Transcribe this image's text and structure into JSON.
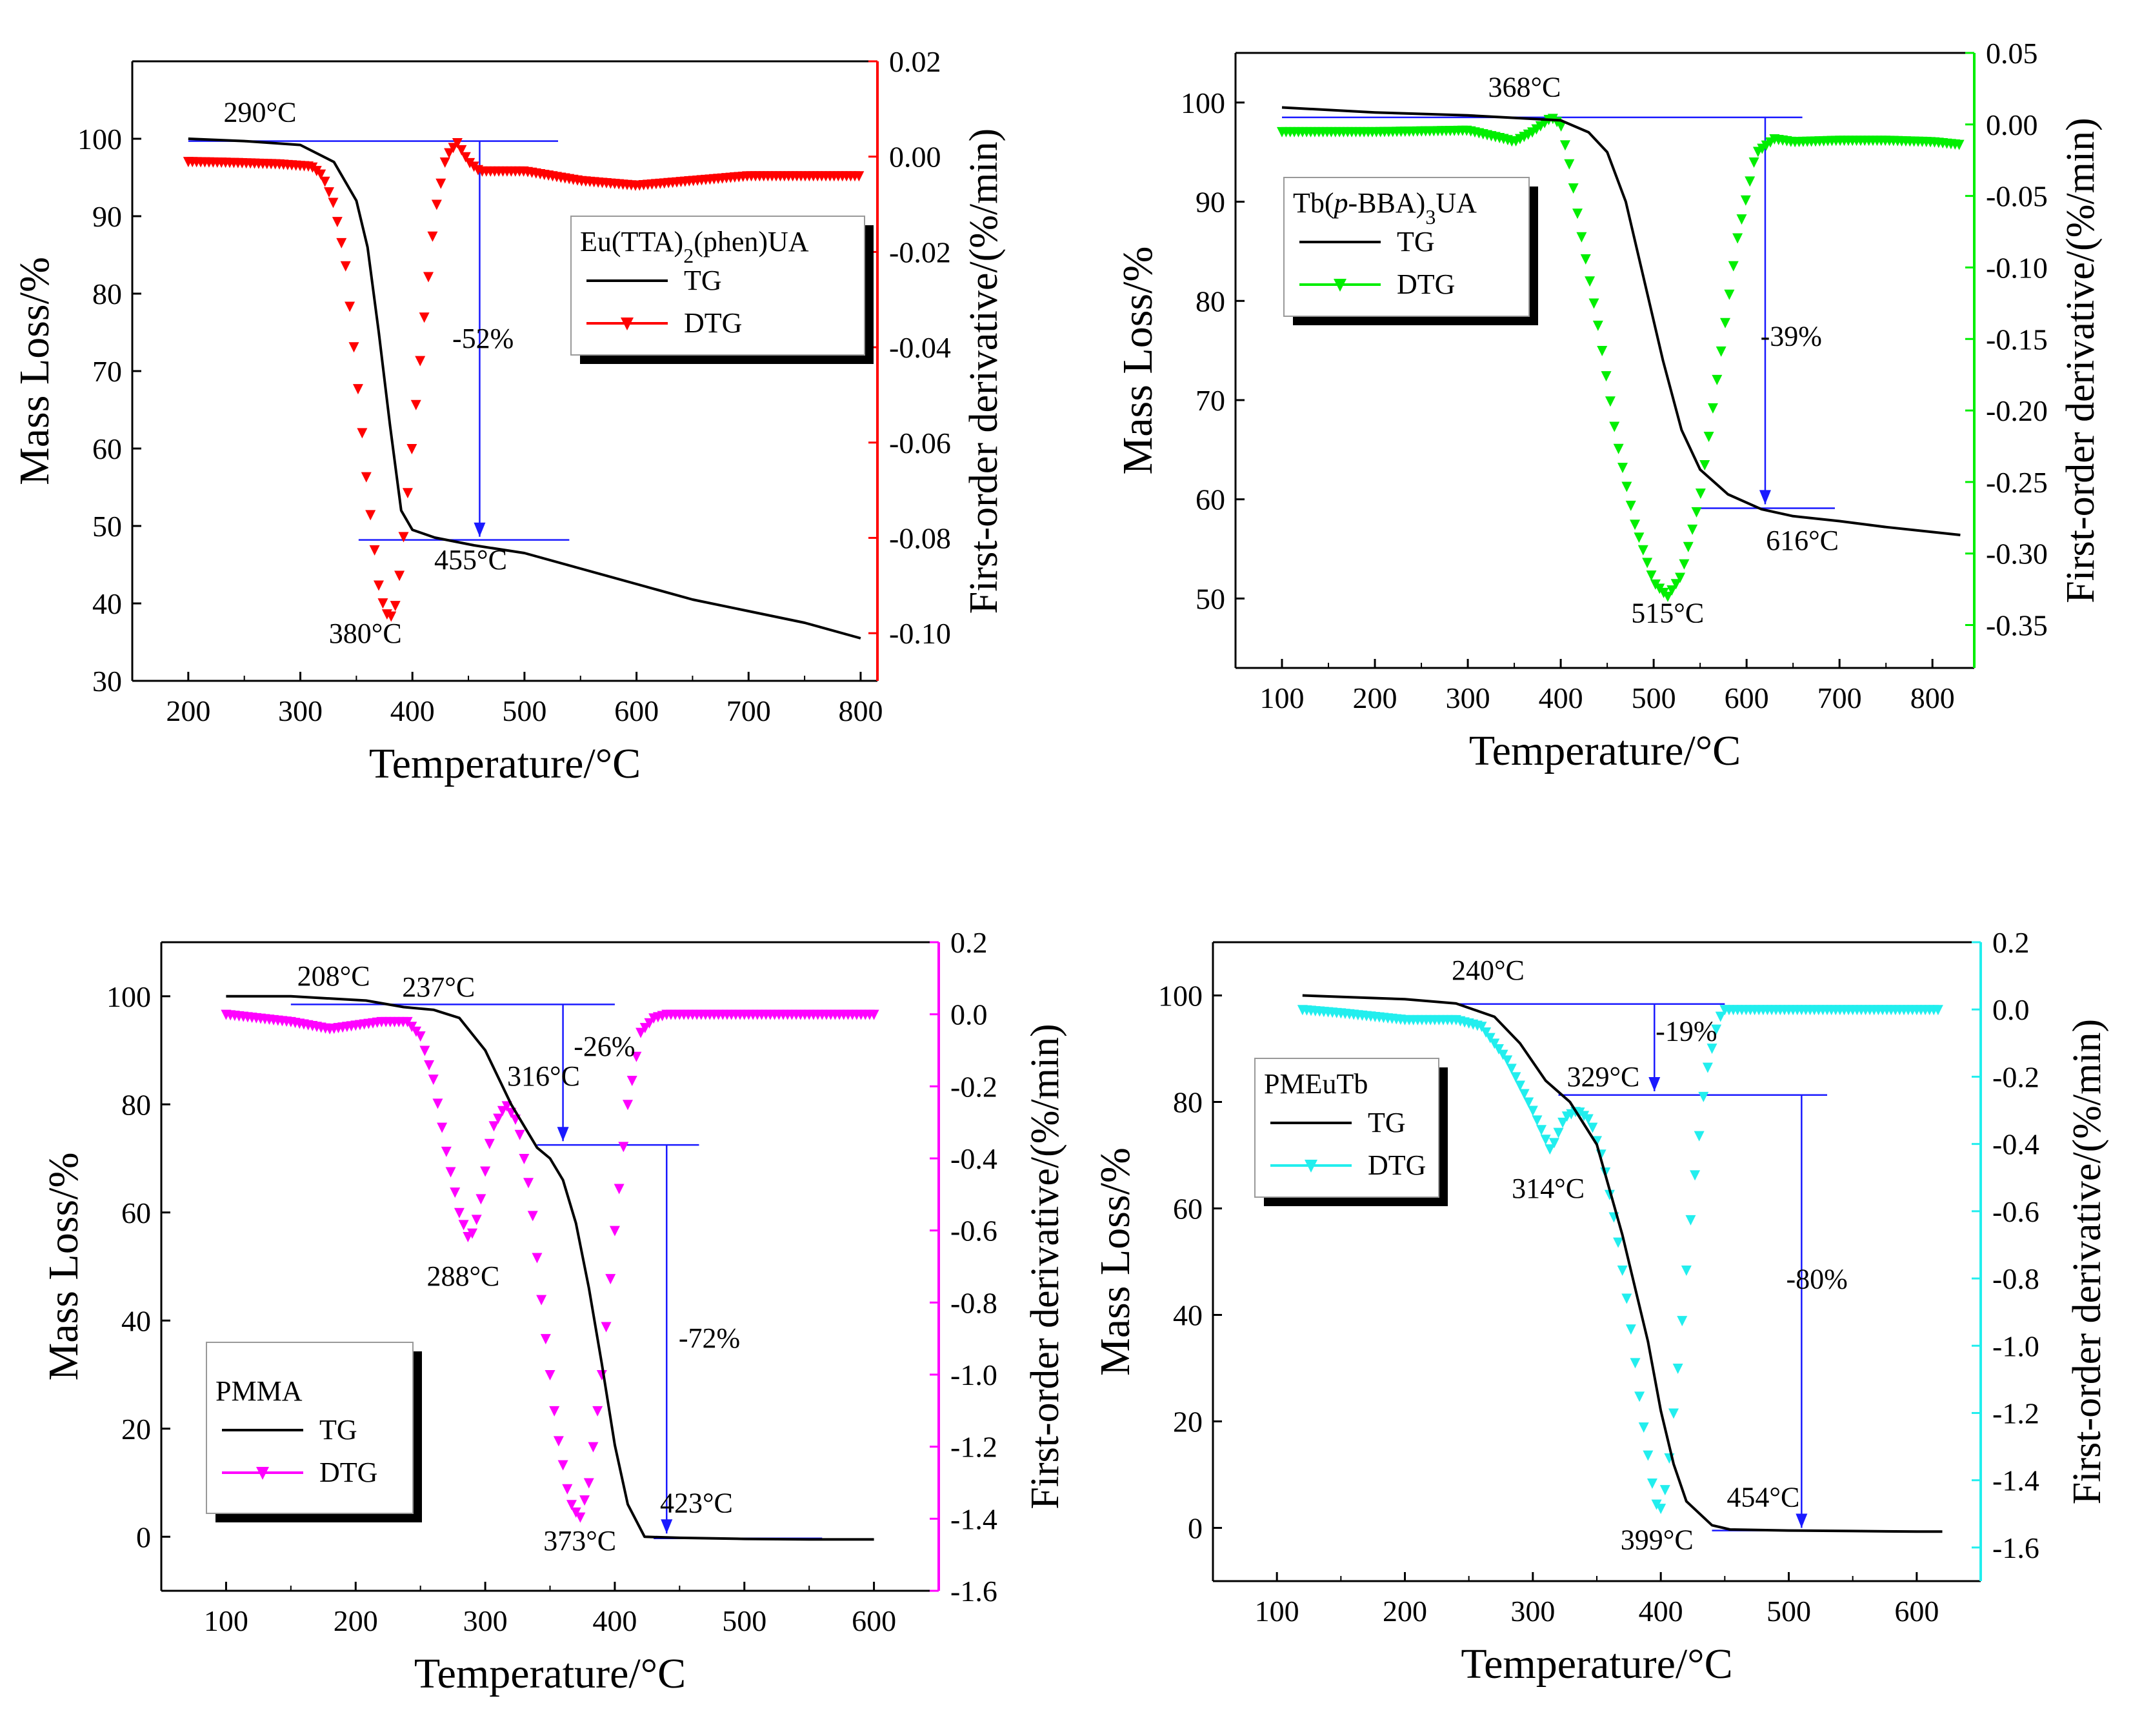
{
  "chart_data": [
    {
      "type": "line",
      "xlabel": "Temperature/°C",
      "ylabel_left": "Mass Loss/%",
      "ylabel_right": "First-order derivative/(%/min)",
      "xlim": [
        150,
        815
      ],
      "ylim_left": [
        30,
        110
      ],
      "ylim_right": [
        -0.11,
        0.02
      ],
      "xticks": [
        200,
        300,
        400,
        500,
        600,
        700,
        800
      ],
      "yticks_left": [
        30,
        40,
        50,
        60,
        70,
        80,
        90,
        100
      ],
      "yticks_right": [
        -0.1,
        -0.08,
        -0.06,
        -0.04,
        -0.02,
        0.0,
        0.02
      ],
      "ytick_labels_right": [
        "-0.10",
        "-0.08",
        "-0.06",
        "-0.04",
        "-0.02",
        "0.00",
        "0.02"
      ],
      "dtg_color": "#ff0000",
      "legend": {
        "title": "Eu(TTA)<sub>2</sub>(phen)UA",
        "tg": "TG",
        "dtg": "DTG"
      },
      "tg": {
        "x": [
          200,
          250,
          300,
          330,
          350,
          360,
          370,
          380,
          390,
          400,
          420,
          455,
          500,
          550,
          600,
          650,
          700,
          750,
          800
        ],
        "y": [
          100,
          99.7,
          99.2,
          97,
          92,
          86,
          75,
          63,
          52,
          49.5,
          48.5,
          47.5,
          46.5,
          44.5,
          42.5,
          40.5,
          39,
          37.5,
          35.5
        ]
      },
      "dtg": {
        "x": [
          200,
          240,
          280,
          310,
          320,
          330,
          340,
          350,
          360,
          370,
          375,
          380,
          385,
          390,
          400,
          410,
          420,
          430,
          440,
          450,
          460,
          480,
          500,
          550,
          600,
          650,
          700,
          750,
          800
        ],
        "y": [
          -0.001,
          -0.0012,
          -0.0015,
          -0.002,
          -0.004,
          -0.01,
          -0.022,
          -0.045,
          -0.07,
          -0.09,
          -0.095,
          -0.097,
          -0.094,
          -0.085,
          -0.06,
          -0.035,
          -0.012,
          0.0,
          0.003,
          -0.001,
          -0.003,
          -0.003,
          -0.003,
          -0.005,
          -0.006,
          -0.005,
          -0.004,
          -0.004,
          -0.004
        ]
      },
      "guides": [
        {
          "x1": 200,
          "y1": 99.7,
          "x2": 530,
          "y2": 99.7
        },
        {
          "x1": 352,
          "y1": 48.2,
          "x2": 540,
          "y2": 48.2
        },
        {
          "x1": 460,
          "y1": 99.7,
          "x2": 460,
          "y2": 48.6,
          "arrow": true
        }
      ],
      "annotations": [
        {
          "text": "290°C",
          "x": 264,
          "y": 102.2
        },
        {
          "text": "455°C",
          "x": 452,
          "y": 44.4
        },
        {
          "text": "380°C",
          "x": 358,
          "y": 34.9
        },
        {
          "text": "-52%",
          "x": 463,
          "y": 73
        }
      ]
    },
    {
      "type": "line",
      "xlabel": "Temperature/°C",
      "ylabel_left": "Mass Loss/%",
      "ylabel_right": "First-order derivative/(%/min)",
      "xlim": [
        50,
        845
      ],
      "ylim_left": [
        43,
        105
      ],
      "ylim_right": [
        -0.38,
        0.05
      ],
      "xticks": [
        100,
        200,
        300,
        400,
        500,
        600,
        700,
        800
      ],
      "yticks_left": [
        50,
        60,
        70,
        80,
        90,
        100
      ],
      "yticks_right": [
        -0.35,
        -0.3,
        -0.25,
        -0.2,
        -0.15,
        -0.1,
        -0.05,
        0.0,
        0.05
      ],
      "ytick_labels_right": [
        "-0.35",
        "-0.30",
        "-0.25",
        "-0.20",
        "-0.15",
        "-0.10",
        "-0.05",
        "0.00",
        "0.05"
      ],
      "dtg_color": "#00ee00",
      "legend": {
        "title": "Tb(<i>p</i>-BBA)<sub>3</sub>UA",
        "tg": "TG",
        "dtg": "DTG"
      },
      "tg": {
        "x": [
          100,
          200,
          300,
          400,
          430,
          450,
          470,
          490,
          510,
          530,
          550,
          580,
          616,
          650,
          700,
          750,
          800,
          830
        ],
        "y": [
          99.5,
          99,
          98.7,
          98.2,
          97,
          95,
          90,
          82,
          74,
          67,
          63,
          60.5,
          59,
          58.3,
          57.8,
          57.2,
          56.7,
          56.4
        ]
      },
      "dtg": {
        "x": [
          100,
          200,
          300,
          340,
          350,
          370,
          380,
          390,
          400,
          410,
          420,
          440,
          460,
          480,
          500,
          515,
          530,
          550,
          570,
          590,
          610,
          630,
          650,
          700,
          750,
          800,
          830
        ],
        "y": [
          -0.005,
          -0.005,
          -0.004,
          -0.01,
          -0.012,
          -0.005,
          0.0,
          0.005,
          0.0,
          -0.03,
          -0.07,
          -0.14,
          -0.22,
          -0.28,
          -0.32,
          -0.33,
          -0.315,
          -0.26,
          -0.17,
          -0.08,
          -0.02,
          -0.01,
          -0.012,
          -0.011,
          -0.011,
          -0.012,
          -0.014
        ]
      },
      "guides": [
        {
          "x1": 100,
          "y1": 98.5,
          "x2": 660,
          "y2": 98.5
        },
        {
          "x1": 550,
          "y1": 59.1,
          "x2": 695,
          "y2": 59.1
        },
        {
          "x1": 620,
          "y1": 98.5,
          "x2": 620,
          "y2": 59.5,
          "arrow": true
        }
      ],
      "annotations": [
        {
          "text": "368°C",
          "x": 361,
          "y": 100.6
        },
        {
          "text": "616°C",
          "x": 660,
          "y": 54.9
        },
        {
          "text": "515°C",
          "x": 515,
          "y": 47.6
        },
        {
          "text": "-39%",
          "x": 648,
          "y": 75.5
        }
      ]
    },
    {
      "type": "line",
      "xlabel": "Temperature/°C",
      "ylabel_left": "Mass Loss/%",
      "ylabel_right": "First-order derivative/(%/min)",
      "xlim": [
        50,
        650
      ],
      "ylim_left": [
        -10,
        110
      ],
      "ylim_right": [
        -1.6,
        0.2
      ],
      "xticks": [
        100,
        200,
        300,
        400,
        500,
        600
      ],
      "yticks_left": [
        0,
        20,
        40,
        60,
        80,
        100
      ],
      "yticks_right": [
        -1.6,
        -1.4,
        -1.2,
        -1.0,
        -0.8,
        -0.6,
        -0.4,
        -0.2,
        0.0,
        0.2
      ],
      "ytick_labels_right": [
        "-1.6",
        "-1.4",
        "-1.2",
        "-1.0",
        "-0.8",
        "-0.6",
        "-0.4",
        "-0.2",
        "0.0",
        "0.2"
      ],
      "dtg_color": "#ff00ff",
      "legend": {
        "title": "PMMA",
        "tg": "TG",
        "dtg": "DTG"
      },
      "tg": {
        "x": [
          100,
          150,
          208,
          237,
          260,
          280,
          300,
          320,
          340,
          350,
          360,
          370,
          380,
          390,
          400,
          410,
          423,
          450,
          500,
          550,
          600
        ],
        "y": [
          100,
          100,
          99.2,
          98,
          97.5,
          96,
          90,
          80,
          72,
          70,
          66,
          58,
          46,
          32,
          17,
          6,
          0,
          -0.2,
          -0.4,
          -0.5,
          -0.5
        ],
        "_comment_placeholder": ""
      },
      "dtg": {
        "x": [
          100,
          150,
          180,
          200,
          220,
          240,
          250,
          260,
          270,
          280,
          288,
          295,
          305,
          316,
          325,
          335,
          345,
          355,
          365,
          373,
          380,
          390,
          400,
          410,
          420,
          430,
          440,
          450,
          500,
          550,
          600
        ],
        "y": [
          0,
          -0.02,
          -0.04,
          -0.03,
          -0.02,
          -0.02,
          -0.06,
          -0.18,
          -0.38,
          -0.55,
          -0.63,
          -0.55,
          -0.32,
          -0.25,
          -0.3,
          -0.5,
          -0.85,
          -1.15,
          -1.35,
          -1.4,
          -1.3,
          -1.0,
          -0.6,
          -0.25,
          -0.05,
          -0.01,
          0.0,
          0.0,
          0.0,
          0.0,
          0.0
        ]
      },
      "guides": [
        {
          "x1": 150,
          "y1": 98.5,
          "x2": 400,
          "y2": 98.5
        },
        {
          "x1": 340,
          "y1": 72.5,
          "x2": 465,
          "y2": 72.5
        },
        {
          "x1": 360,
          "y1": 98.5,
          "x2": 360,
          "y2": 73.2,
          "arrow": true
        },
        {
          "x1": 440,
          "y1": 72.5,
          "x2": 440,
          "y2": 0.6,
          "arrow": true
        },
        {
          "x1": 430,
          "y1": -0.3,
          "x2": 560,
          "y2": -0.3
        }
      ],
      "annotations": [
        {
          "text": "208°C",
          "x": 183,
          "y": 102
        },
        {
          "text": "237°C",
          "x": 264,
          "y": 100
        },
        {
          "text": "316°C",
          "x": 345,
          "y": 83.5
        },
        {
          "text": "-26%",
          "x": 392,
          "y": 89
        },
        {
          "text": "288°C",
          "x": 283,
          "y": 46.5
        },
        {
          "text": "-72%",
          "x": 473,
          "y": 35
        },
        {
          "text": "423°C",
          "x": 463,
          "y": 4.5
        },
        {
          "text": "373°C",
          "x": 373,
          "y": -2.5
        }
      ]
    },
    {
      "type": "line",
      "xlabel": "Temperature/°C",
      "ylabel_left": "Mass Loss/%",
      "ylabel_right": "First-order derivative/(%/min)",
      "xlim": [
        50,
        650
      ],
      "ylim_left": [
        -10,
        110
      ],
      "ylim_right": [
        -1.7,
        0.2
      ],
      "xticks": [
        100,
        200,
        300,
        400,
        500,
        600
      ],
      "yticks_left": [
        0,
        20,
        40,
        60,
        80,
        100
      ],
      "yticks_right": [
        -1.6,
        -1.4,
        -1.2,
        -1.0,
        -0.8,
        -0.6,
        -0.4,
        -0.2,
        0.0,
        0.2
      ],
      "ytick_labels_right": [
        "-1.6",
        "-1.4",
        "-1.2",
        "-1.0",
        "-0.8",
        "-0.6",
        "-0.4",
        "-0.2",
        "0.0",
        "0.2"
      ],
      "dtg_color": "#22eeee",
      "legend": {
        "title": "PMEuTb",
        "tg": "TG",
        "dtg": "DTG"
      },
      "tg": {
        "x": [
          120,
          200,
          240,
          270,
          290,
          310,
          329,
          350,
          370,
          390,
          400,
          410,
          420,
          440,
          454,
          500,
          550,
          600,
          620
        ],
        "y": [
          100,
          99.3,
          98.5,
          96,
          91,
          84,
          80,
          72,
          55,
          35,
          22,
          12,
          5,
          0.5,
          -0.3,
          -0.5,
          -0.6,
          -0.7,
          -0.7
        ]
      },
      "dtg": {
        "x": [
          120,
          150,
          200,
          240,
          260,
          280,
          300,
          314,
          325,
          335,
          345,
          355,
          365,
          375,
          385,
          395,
          399,
          405,
          415,
          425,
          435,
          445,
          450,
          500,
          550,
          600,
          620
        ],
        "y": [
          0,
          -0.01,
          -0.03,
          -0.03,
          -0.05,
          -0.15,
          -0.3,
          -0.42,
          -0.32,
          -0.3,
          -0.33,
          -0.45,
          -0.65,
          -0.9,
          -1.2,
          -1.45,
          -1.5,
          -1.4,
          -1.0,
          -0.55,
          -0.2,
          -0.03,
          0.0,
          0.0,
          0.0,
          0.0,
          0.0
        ]
      },
      "guides": [
        {
          "x1": 240,
          "y1": 98.4,
          "x2": 450,
          "y2": 98.4
        },
        {
          "x1": 320,
          "y1": 81.3,
          "x2": 530,
          "y2": 81.3
        },
        {
          "x1": 395,
          "y1": 98.4,
          "x2": 395,
          "y2": 82,
          "arrow": true
        },
        {
          "x1": 510,
          "y1": 81.3,
          "x2": 510,
          "y2": 0,
          "arrow": true
        },
        {
          "x1": 440,
          "y1": -0.5,
          "x2": 530,
          "y2": -0.5
        }
      ],
      "annotations": [
        {
          "text": "240°C",
          "x": 265,
          "y": 103
        },
        {
          "text": "-19%",
          "x": 420,
          "y": 91.5
        },
        {
          "text": "329°C",
          "x": 355,
          "y": 83
        },
        {
          "text": "314°C",
          "x": 312,
          "y": 62
        },
        {
          "text": "-80%",
          "x": 522,
          "y": 45
        },
        {
          "text": "454°C",
          "x": 480,
          "y": 4
        },
        {
          "text": "399°C",
          "x": 397,
          "y": -4
        }
      ]
    }
  ]
}
